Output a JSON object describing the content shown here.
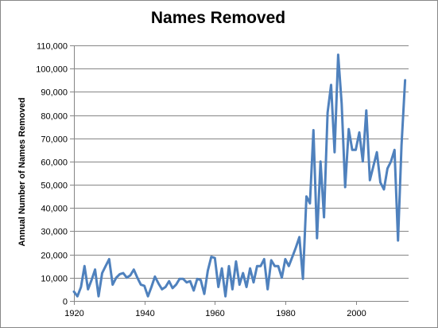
{
  "chart_data": {
    "type": "line",
    "title": "Names Removed",
    "xlabel": "",
    "ylabel": "Annual Number of Names Removed",
    "xlim": [
      1920,
      2015
    ],
    "ylim": [
      0,
      110000
    ],
    "x_ticks": [
      1920,
      1940,
      1960,
      1980,
      2000
    ],
    "y_ticks": [
      0,
      10000,
      20000,
      30000,
      40000,
      50000,
      60000,
      70000,
      80000,
      90000,
      100000,
      110000
    ],
    "y_tick_labels": [
      "0",
      "10,000",
      "20,000",
      "30,000",
      "40,000",
      "50,000",
      "60,000",
      "70,000",
      "80,000",
      "90,000",
      "100,000",
      "110,000"
    ],
    "x_tick_labels": [
      "1920",
      "1940",
      "1960",
      "1980",
      "2000"
    ],
    "grid": "horizontal",
    "legend": "none",
    "series": [
      {
        "color": "#4f81bd",
        "x": [
          1920,
          1921,
          1922,
          1923,
          1924,
          1925,
          1926,
          1927,
          1928,
          1929,
          1930,
          1931,
          1932,
          1933,
          1934,
          1935,
          1936,
          1937,
          1938,
          1939,
          1940,
          1941,
          1942,
          1943,
          1944,
          1945,
          1946,
          1947,
          1948,
          1949,
          1950,
          1951,
          1952,
          1953,
          1954,
          1955,
          1956,
          1957,
          1958,
          1959,
          1960,
          1961,
          1962,
          1963,
          1964,
          1965,
          1966,
          1967,
          1968,
          1969,
          1970,
          1971,
          1972,
          1973,
          1974,
          1975,
          1976,
          1977,
          1978,
          1979,
          1980,
          1981,
          1982,
          1983,
          1984,
          1985,
          1986,
          1987,
          1988,
          1989,
          1990,
          1991,
          1992,
          1993,
          1994,
          1995,
          1996,
          1997,
          1998,
          1999,
          2000,
          2001,
          2002,
          2003,
          2004,
          2005,
          2006,
          2007,
          2008,
          2009,
          2010,
          2011,
          2012,
          2013,
          2014
        ],
        "values": [
          4000,
          2000,
          6000,
          15000,
          5000,
          9000,
          13500,
          2000,
          12000,
          15000,
          18000,
          7000,
          10000,
          11500,
          12000,
          10000,
          11000,
          13500,
          10000,
          7000,
          6500,
          2000,
          6000,
          10500,
          7500,
          5000,
          6000,
          8500,
          5500,
          7000,
          9500,
          9500,
          8000,
          8500,
          4500,
          9500,
          9000,
          3000,
          13000,
          19000,
          18500,
          6000,
          14000,
          2000,
          15000,
          5000,
          17000,
          7000,
          12000,
          6000,
          14000,
          8000,
          15000,
          15000,
          18000,
          5000,
          17500,
          15000,
          15000,
          10000,
          18000,
          15000,
          19000,
          23000,
          27500,
          9500,
          45000,
          42000,
          73500,
          27000,
          60000,
          36000,
          81000,
          93000,
          64000,
          106000,
          85000,
          49000,
          74000,
          65000,
          65000,
          72500,
          60000,
          82000,
          52000,
          58000,
          64000,
          51000,
          48000,
          57000,
          60000,
          65000,
          26000,
          67000,
          95000
        ]
      }
    ]
  }
}
